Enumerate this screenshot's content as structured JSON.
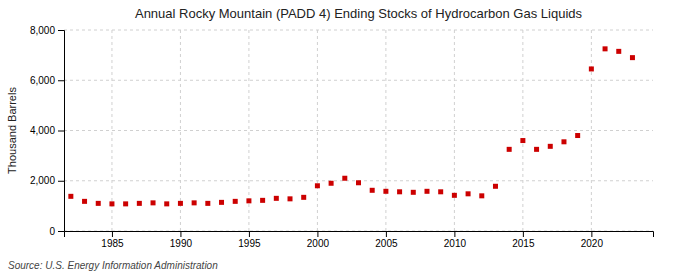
{
  "chart_data": {
    "type": "scatter",
    "title": "Annual Rocky Mountain (PADD 4) Ending Stocks of Hydrocarbon Gas Liquids",
    "ylabel": "Thousand Barrels",
    "source": "Source: U.S. Energy Information Administration",
    "x": [
      1982,
      1983,
      1984,
      1985,
      1986,
      1987,
      1988,
      1989,
      1990,
      1991,
      1992,
      1993,
      1994,
      1995,
      1996,
      1997,
      1998,
      1999,
      2000,
      2001,
      2002,
      2003,
      2004,
      2005,
      2006,
      2007,
      2008,
      2009,
      2010,
      2011,
      2012,
      2013,
      2014,
      2015,
      2016,
      2017,
      2018,
      2019,
      2020,
      2021,
      2022,
      2023
    ],
    "values": [
      1380,
      1180,
      1100,
      1080,
      1080,
      1100,
      1120,
      1080,
      1100,
      1120,
      1100,
      1140,
      1180,
      1200,
      1220,
      1300,
      1280,
      1340,
      1800,
      1900,
      2100,
      1920,
      1620,
      1580,
      1560,
      1540,
      1580,
      1560,
      1420,
      1480,
      1400,
      1780,
      3250,
      3600,
      3250,
      3370,
      3550,
      3800,
      6450,
      7250,
      7150,
      6900
    ],
    "color": "#cc0000",
    "marker": "square",
    "xlim": [
      1981.5,
      2024.5
    ],
    "xticks": [
      1985,
      1990,
      1995,
      2000,
      2005,
      2010,
      2015,
      2020
    ],
    "ylim": [
      0,
      8000
    ],
    "yticks": [
      0,
      {
        "value": 2000,
        "label": "2,000"
      },
      {
        "value": 4000,
        "label": "4,000"
      },
      {
        "value": 6000,
        "label": "6,000"
      },
      {
        "value": 8000,
        "label": "8,000"
      }
    ],
    "grid": true
  }
}
